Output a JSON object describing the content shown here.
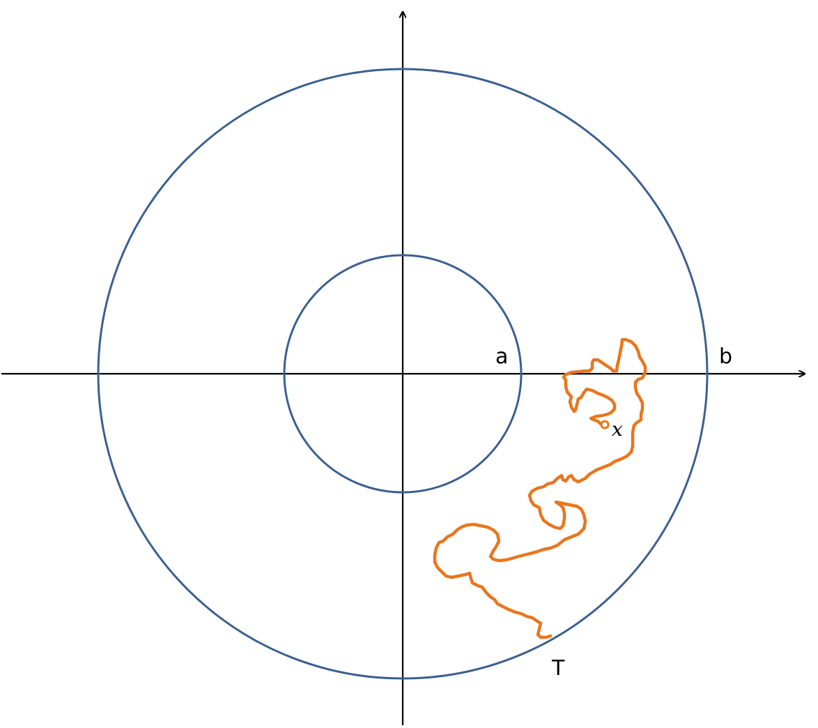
{
  "diagram": {
    "labels": {
      "inner_radius": "a",
      "outer_radius": "b",
      "start_point": "x",
      "exit_point": "T"
    },
    "colors": {
      "circles": "#3b5f8f",
      "path": "#e8761e",
      "axes": "#000000",
      "background": "#ffffff"
    }
  }
}
